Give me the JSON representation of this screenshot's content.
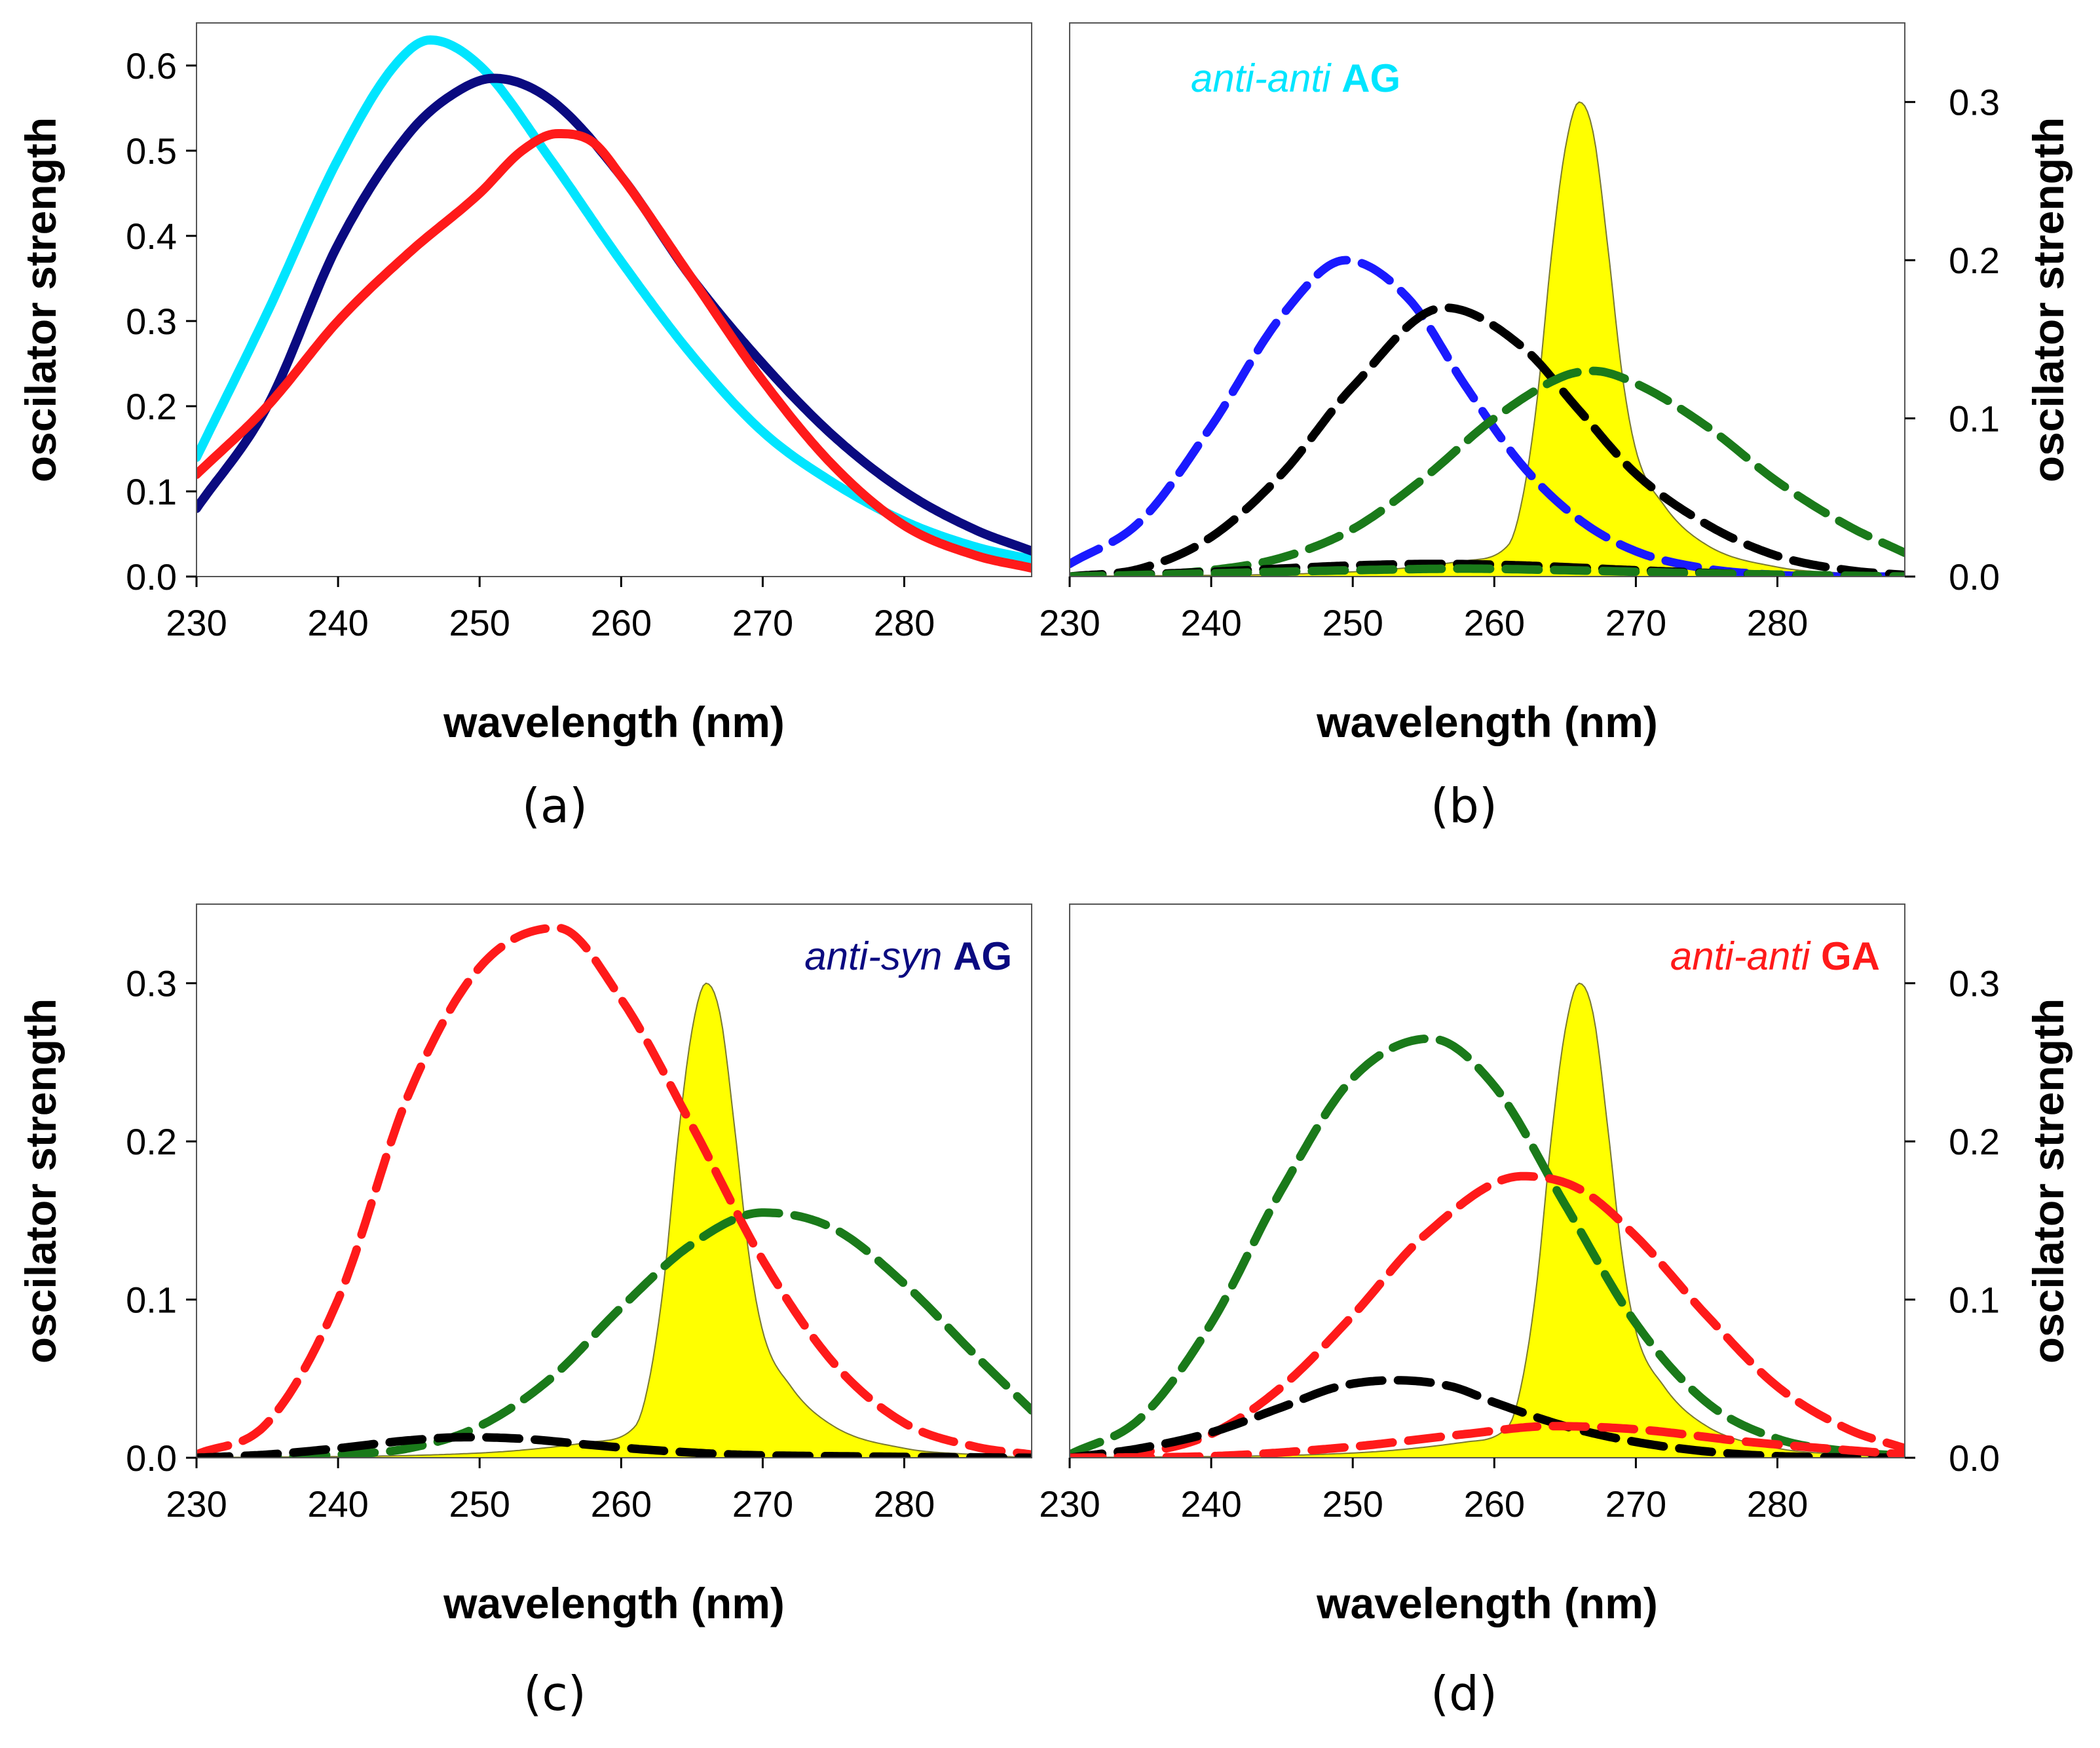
{
  "chart_data": [
    {
      "panel": "(a)",
      "type": "line",
      "xlabel": "wavelength (nm)",
      "ylabel": "oscilator strength",
      "xlim": [
        230,
        289
      ],
      "ylim": [
        0,
        0.65
      ],
      "xticks": [
        "230",
        "240",
        "250",
        "260",
        "270",
        "280"
      ],
      "yticks": [
        "0.0",
        "0.1",
        "0.2",
        "0.3",
        "0.4",
        "0.5",
        "0.6"
      ],
      "title": "",
      "series": [
        {
          "name": "cyan curve",
          "color": "#00E5FF",
          "style": "solid",
          "x": [
            230,
            235,
            240,
            244,
            246.5,
            250,
            255,
            260,
            265,
            270,
            275,
            280,
            285,
            289
          ],
          "y": [
            0.14,
            0.31,
            0.49,
            0.6,
            0.63,
            0.6,
            0.49,
            0.37,
            0.26,
            0.17,
            0.11,
            0.065,
            0.035,
            0.02
          ]
        },
        {
          "name": "navy curve",
          "color": "#0A0A80",
          "style": "solid",
          "x": [
            230,
            235,
            240,
            245,
            248,
            251,
            255,
            260,
            265,
            270,
            275,
            280,
            285,
            289
          ],
          "y": [
            0.08,
            0.2,
            0.39,
            0.52,
            0.565,
            0.585,
            0.56,
            0.47,
            0.35,
            0.25,
            0.165,
            0.1,
            0.055,
            0.03
          ]
        },
        {
          "name": "red curve",
          "color": "#FF1A1A",
          "style": "solid",
          "x": [
            230,
            235,
            240,
            245,
            250,
            253,
            255.5,
            258,
            260,
            265,
            270,
            275,
            280,
            285,
            289
          ],
          "y": [
            0.12,
            0.2,
            0.3,
            0.38,
            0.45,
            0.5,
            0.52,
            0.51,
            0.47,
            0.35,
            0.23,
            0.13,
            0.06,
            0.025,
            0.01
          ]
        }
      ]
    },
    {
      "panel": "(b)",
      "type": "line",
      "label_italic": "anti-anti",
      "label_bold": "AG",
      "label_color": "#00E5FF",
      "xlabel": "wavelength (nm)",
      "ylabel": "oscilator strength",
      "xlim": [
        230,
        289
      ],
      "ylim": [
        0,
        0.35
      ],
      "xticks": [
        "230",
        "240",
        "250",
        "260",
        "270",
        "280"
      ],
      "yticks": [
        "0.0",
        "0.1",
        "0.2",
        "0.3"
      ],
      "series": [
        {
          "name": "yellow band",
          "color": "#FFFF00",
          "style": "fill",
          "x": [
            230,
            250,
            258,
            261,
            262,
            263,
            264,
            265,
            266,
            267,
            268,
            269,
            270,
            272,
            275,
            280,
            285,
            289
          ],
          "y": [
            0,
            0.003,
            0.01,
            0.02,
            0.05,
            0.11,
            0.2,
            0.27,
            0.3,
            0.28,
            0.21,
            0.13,
            0.08,
            0.045,
            0.02,
            0.006,
            0.002,
            0
          ]
        },
        {
          "name": "blue dashed",
          "color": "#1A1AFF",
          "style": "dashed",
          "x": [
            230,
            235,
            240,
            245,
            249.5,
            254,
            258,
            262,
            266,
            270,
            275,
            280,
            285,
            289
          ],
          "y": [
            0.008,
            0.035,
            0.095,
            0.165,
            0.2,
            0.175,
            0.12,
            0.07,
            0.036,
            0.016,
            0.005,
            0.001,
            0.0,
            0.0
          ]
        },
        {
          "name": "black dashed",
          "color": "#000000",
          "style": "dashed",
          "x": [
            230,
            235,
            240,
            245,
            250,
            256.5,
            262,
            266,
            270,
            275,
            280,
            285,
            289
          ],
          "y": [
            0.0,
            0.005,
            0.025,
            0.065,
            0.12,
            0.17,
            0.145,
            0.105,
            0.065,
            0.033,
            0.013,
            0.004,
            0.001
          ]
        },
        {
          "name": "green dashed",
          "color": "#1A7A1A",
          "style": "dashed",
          "x": [
            230,
            235,
            240,
            245,
            250,
            255,
            260,
            265,
            267,
            270,
            275,
            280,
            285,
            289
          ],
          "y": [
            0.0,
            0.001,
            0.004,
            0.012,
            0.03,
            0.062,
            0.1,
            0.127,
            0.13,
            0.122,
            0.095,
            0.06,
            0.032,
            0.015
          ]
        },
        {
          "name": "black dashed low",
          "color": "#000000",
          "style": "dashed",
          "x": [
            230,
            240,
            250,
            256,
            262,
            270,
            280,
            289
          ],
          "y": [
            0.0,
            0.003,
            0.007,
            0.008,
            0.007,
            0.004,
            0.001,
            0.0
          ]
        },
        {
          "name": "green dashed low",
          "color": "#1A7A1A",
          "style": "dashed",
          "x": [
            230,
            240,
            250,
            258,
            265,
            275,
            289
          ],
          "y": [
            0.0,
            0.002,
            0.004,
            0.005,
            0.004,
            0.002,
            0.0
          ]
        }
      ]
    },
    {
      "panel": "(c)",
      "type": "line",
      "label_italic": "anti-syn",
      "label_bold": "AG",
      "label_color": "#0A0A80",
      "xlabel": "wavelength (nm)",
      "ylabel": "oscilator strength",
      "xlim": [
        230,
        289
      ],
      "ylim": [
        0,
        0.35
      ],
      "xticks": [
        "230",
        "240",
        "250",
        "260",
        "270",
        "280"
      ],
      "yticks": [
        "0.0",
        "0.1",
        "0.2",
        "0.3"
      ],
      "series": [
        {
          "name": "yellow band",
          "color": "#FFFF00",
          "style": "fill",
          "x": [
            230,
            250,
            258,
            261,
            262,
            263,
            264,
            265,
            266,
            267,
            268,
            269,
            270,
            272,
            275,
            280,
            285,
            289
          ],
          "y": [
            0,
            0.003,
            0.01,
            0.02,
            0.05,
            0.11,
            0.2,
            0.27,
            0.3,
            0.28,
            0.21,
            0.13,
            0.08,
            0.045,
            0.02,
            0.006,
            0.002,
            0
          ]
        },
        {
          "name": "red dashed",
          "color": "#FF1A1A",
          "style": "dashed",
          "x": [
            230,
            235,
            240,
            245,
            250,
            255.5,
            260,
            265,
            270,
            275,
            280,
            285,
            289
          ],
          "y": [
            0.002,
            0.022,
            0.1,
            0.23,
            0.31,
            0.335,
            0.29,
            0.21,
            0.125,
            0.06,
            0.022,
            0.007,
            0.002
          ]
        },
        {
          "name": "green dashed",
          "color": "#1A7A1A",
          "style": "dashed",
          "x": [
            230,
            240,
            245,
            250,
            255,
            260,
            265,
            270,
            275,
            280,
            285,
            289
          ],
          "y": [
            0.0,
            0.002,
            0.006,
            0.02,
            0.05,
            0.095,
            0.135,
            0.155,
            0.145,
            0.11,
            0.065,
            0.03
          ]
        },
        {
          "name": "black dashed low",
          "color": "#000000",
          "style": "dashed",
          "x": [
            230,
            235,
            240,
            245,
            249,
            253,
            258,
            262,
            268,
            275,
            289
          ],
          "y": [
            0.0,
            0.002,
            0.006,
            0.011,
            0.013,
            0.012,
            0.008,
            0.005,
            0.002,
            0.001,
            0.0
          ]
        }
      ]
    },
    {
      "panel": "(d)",
      "type": "line",
      "label_italic": "anti-anti",
      "label_bold": "GA",
      "label_color": "#FF1A1A",
      "xlabel": "wavelength (nm)",
      "ylabel": "oscilator strength",
      "xlim": [
        230,
        289
      ],
      "ylim": [
        0,
        0.35
      ],
      "xticks": [
        "230",
        "240",
        "250",
        "260",
        "270",
        "280"
      ],
      "yticks": [
        "0.0",
        "0.1",
        "0.2",
        "0.3"
      ],
      "series": [
        {
          "name": "yellow band",
          "color": "#FFFF00",
          "style": "fill",
          "x": [
            230,
            250,
            258,
            261,
            262,
            263,
            264,
            265,
            266,
            267,
            268,
            269,
            270,
            272,
            275,
            280,
            285,
            289
          ],
          "y": [
            0,
            0.003,
            0.01,
            0.02,
            0.05,
            0.11,
            0.2,
            0.27,
            0.3,
            0.28,
            0.21,
            0.13,
            0.08,
            0.045,
            0.02,
            0.006,
            0.002,
            0
          ]
        },
        {
          "name": "green dashed",
          "color": "#1A7A1A",
          "style": "dashed",
          "x": [
            230,
            235,
            240,
            245,
            250,
            255.5,
            260,
            265,
            270,
            275,
            280,
            285,
            289
          ],
          "y": [
            0.002,
            0.025,
            0.085,
            0.17,
            0.24,
            0.265,
            0.235,
            0.16,
            0.085,
            0.035,
            0.012,
            0.004,
            0.001
          ]
        },
        {
          "name": "red dashed",
          "color": "#FF1A1A",
          "style": "dashed",
          "x": [
            230,
            235,
            240,
            245,
            250,
            255,
            262,
            266,
            270,
            275,
            280,
            285,
            289
          ],
          "y": [
            0.0,
            0.003,
            0.015,
            0.045,
            0.09,
            0.14,
            0.178,
            0.17,
            0.14,
            0.09,
            0.045,
            0.018,
            0.006
          ]
        },
        {
          "name": "black dashed",
          "color": "#000000",
          "style": "dashed",
          "x": [
            230,
            235,
            240,
            245,
            249,
            253,
            257,
            260,
            265,
            270,
            275,
            280,
            289
          ],
          "y": [
            0.0,
            0.006,
            0.016,
            0.032,
            0.045,
            0.049,
            0.045,
            0.035,
            0.02,
            0.01,
            0.004,
            0.001,
            0.0
          ]
        },
        {
          "name": "red dashed low",
          "color": "#FF1A1A",
          "style": "dashed",
          "x": [
            230,
            240,
            250,
            258,
            264,
            270,
            278,
            289
          ],
          "y": [
            0.0,
            0.001,
            0.007,
            0.015,
            0.02,
            0.018,
            0.01,
            0.002
          ]
        }
      ]
    }
  ]
}
